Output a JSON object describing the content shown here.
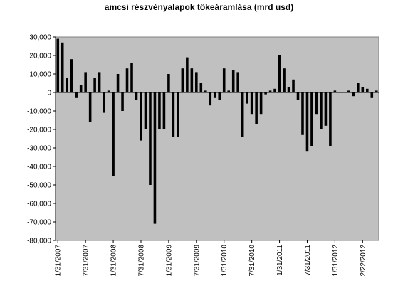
{
  "chart_data": {
    "type": "bar",
    "title": "amcsi részvényalapok tőkeáramlása (mrd usd)",
    "xlabel": "",
    "ylabel": "",
    "ylim": [
      -80000,
      30000
    ],
    "yticks": [
      30000,
      20000,
      10000,
      0,
      -10000,
      -20000,
      -30000,
      -40000,
      -50000,
      -60000,
      -70000,
      -80000
    ],
    "ytick_labels": [
      "30,000",
      "20,000",
      "10,000",
      "0",
      "-10,000",
      "-20,000",
      "-30,000",
      "-40,000",
      "-50,000",
      "-60,000",
      "-70,000",
      "-80,000"
    ],
    "xtick_labels": [
      "1/31/2007",
      "7/31/2007",
      "1/31/2008",
      "7/31/2008",
      "1/31/2009",
      "7/31/2009",
      "1/31/2010",
      "7/31/2010",
      "1/31/2011",
      "7/31/2011",
      "1/31/2012",
      "2/22/2012"
    ],
    "xtick_positions": [
      0,
      6,
      12,
      18,
      24,
      30,
      36,
      42,
      48,
      54,
      60,
      66
    ],
    "grid": false,
    "legend": "none",
    "plot_bg": "#c0c0c0",
    "bar_color": "#000000",
    "series": [
      {
        "values": [
          29000,
          27000,
          8000,
          18000,
          -3000,
          4000,
          11000,
          -16000,
          8000,
          11000,
          -11000,
          1000,
          -45000,
          10000,
          -10000,
          13000,
          16000,
          -4000,
          -26000,
          -20000,
          -50000,
          -71000,
          -20000,
          -20000,
          10000,
          -24000,
          -24000,
          13000,
          19000,
          13000,
          11000,
          5000,
          1000,
          -7000,
          -3000,
          -4000,
          13000,
          1000,
          12000,
          11000,
          -24000,
          -6000,
          -12000,
          -17000,
          -12000,
          -1000,
          1000,
          2000,
          20000,
          13000,
          3000,
          7000,
          -4000,
          -23000,
          -32000,
          -29000,
          -12000,
          -20000,
          -18000,
          -29000,
          1000,
          0,
          0,
          1000,
          -2000,
          5000,
          3000,
          2000,
          -3000,
          1000
        ]
      }
    ]
  }
}
